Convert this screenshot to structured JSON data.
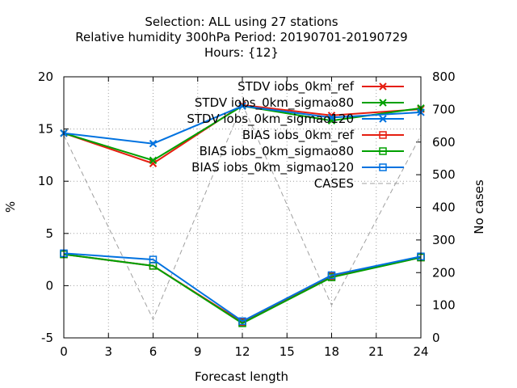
{
  "chart_data": {
    "type": "line",
    "title": [
      "Selection: ALL using    27 stations",
      "Relative humidity 300hPa   Period: 20190701-20190729",
      "Hours: {12}"
    ],
    "xlabel": "Forecast length",
    "ylabel": "%",
    "y2label": "No cases",
    "x": [
      0,
      6,
      12,
      18,
      24
    ],
    "xticks": [
      "0",
      "3",
      "6",
      "9",
      "12",
      "15",
      "18",
      "21",
      "24"
    ],
    "xlim": [
      0,
      24
    ],
    "ylim": [
      -5,
      20
    ],
    "yticks": [
      "-5",
      "0",
      "5",
      "10",
      "15",
      "20"
    ],
    "y2lim": [
      0,
      800
    ],
    "y2ticks": [
      "0",
      "100",
      "200",
      "300",
      "400",
      "500",
      "600",
      "700",
      "800"
    ],
    "grid": true,
    "legend_position": "top-right",
    "series": [
      {
        "name": "STDV iobs_0km_ref",
        "axis": "y",
        "marker": "x",
        "color": "#e51e10",
        "values": [
          14.6,
          11.7,
          17.3,
          16.3,
          16.9
        ]
      },
      {
        "name": "STDV iobs_0km_sigmao80",
        "axis": "y",
        "marker": "x",
        "color": "#00a000",
        "values": [
          14.6,
          12.0,
          17.2,
          15.8,
          17.0
        ]
      },
      {
        "name": "STDV iobs_0km_sigmao120",
        "axis": "y",
        "marker": "x",
        "color": "#0072e0",
        "values": [
          14.6,
          13.6,
          17.2,
          16.1,
          16.6
        ]
      },
      {
        "name": "BIAS iobs_0km_ref",
        "axis": "y",
        "marker": "square",
        "color": "#e51e10",
        "values": [
          3.0,
          1.9,
          -3.5,
          0.9,
          2.7
        ]
      },
      {
        "name": "BIAS iobs_0km_sigmao80",
        "axis": "y",
        "marker": "square",
        "color": "#00a000",
        "values": [
          3.0,
          1.9,
          -3.6,
          0.8,
          2.7
        ]
      },
      {
        "name": "BIAS iobs_0km_sigmao120",
        "axis": "y",
        "marker": "square",
        "color": "#0072e0",
        "values": [
          3.1,
          2.5,
          -3.4,
          1.0,
          2.8
        ]
      },
      {
        "name": "CASES",
        "axis": "y2",
        "marker": "none",
        "color": "#a0a0a0",
        "dashed": true,
        "values": [
          621,
          57,
          716,
          100,
          621
        ]
      }
    ]
  }
}
